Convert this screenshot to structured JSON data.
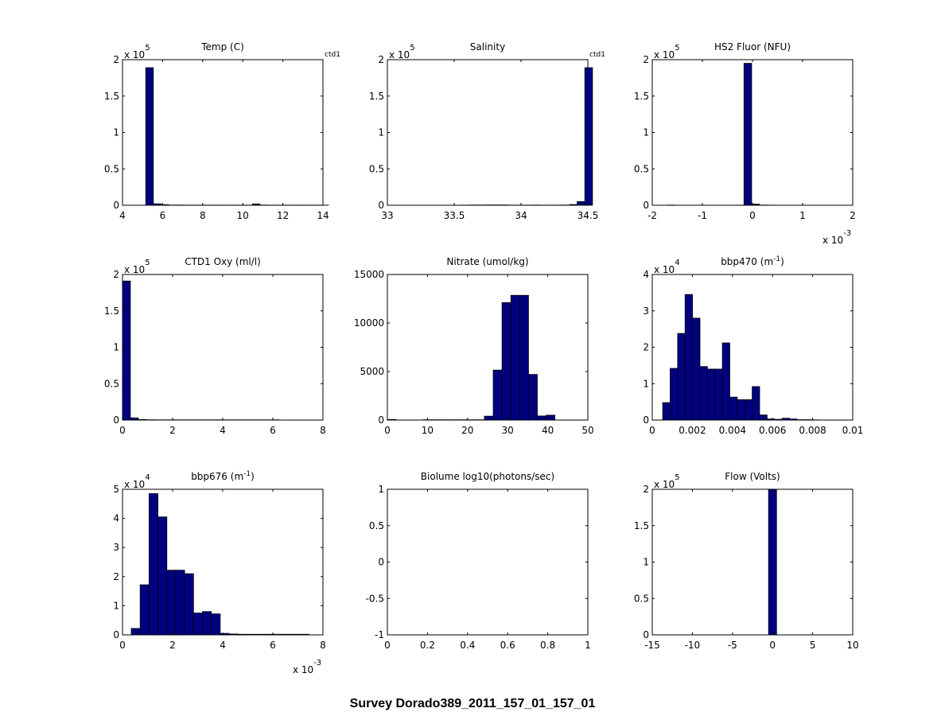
{
  "figure": {
    "suptitle": "Survey Dorado389_2011_157_01_157_01",
    "bar_color": "#000080",
    "edge_color": "#000000"
  },
  "chart_data": [
    {
      "type": "bar",
      "title": "Temp (C)",
      "corner_label": "ctd1",
      "xlim": [
        4,
        14
      ],
      "ylim": [
        0,
        2
      ],
      "xticks": [
        4,
        6,
        8,
        10,
        12,
        14
      ],
      "yticks": [
        0,
        0.5,
        1,
        1.5,
        2
      ],
      "x_exponent": "",
      "y_exponent": "5",
      "bins": {
        "start": 5.16,
        "width": 0.38,
        "values": [
          1.89,
          0.02,
          0.008,
          0.003,
          0.003,
          0.002,
          0.002,
          0.002,
          0.002,
          0.002,
          0.002,
          0.002,
          0.002,
          0.002,
          0.018,
          0.003,
          0.002,
          0.002,
          0.002,
          0.002,
          0.002,
          0.002,
          0.002,
          0.002
        ]
      }
    },
    {
      "type": "bar",
      "title": "Salinity",
      "corner_label": "ctd1",
      "xlim": [
        33,
        34.5
      ],
      "ylim": [
        0,
        2
      ],
      "xticks": [
        33,
        33.5,
        34,
        34.5
      ],
      "yticks": [
        0,
        0.5,
        1,
        1.5,
        2
      ],
      "x_exponent": "",
      "y_exponent": "5",
      "bins": {
        "start": 33.27,
        "width": 0.0575,
        "values": [
          0.0,
          0.0,
          0.0,
          0.0,
          0.0,
          0.002,
          0.003,
          0.003,
          0.004,
          0.004,
          0.004,
          0.002,
          0.002,
          0.002,
          0.003,
          0.002,
          0.002,
          0.002,
          0.003,
          0.01,
          0.05,
          1.89
        ]
      }
    },
    {
      "type": "bar",
      "title": "HS2 Fluor (NFU)",
      "corner_label": "",
      "xlim": [
        -2,
        2
      ],
      "ylim": [
        0,
        2
      ],
      "xticks": [
        -2,
        -1,
        0,
        1,
        2
      ],
      "yticks": [
        0,
        0.5,
        1,
        1.5,
        2
      ],
      "x_exponent": "-3",
      "y_exponent": "5",
      "bins": {
        "start": -1.7,
        "width": 0.153,
        "values": [
          0.003,
          0.0,
          0.0,
          0.001,
          0.001,
          0.001,
          0.001,
          0.001,
          0.001,
          0.002,
          1.95,
          0.015,
          0.003,
          0.002,
          0.001,
          0.001,
          0.001,
          0.001,
          0.001,
          0.001
        ]
      }
    },
    {
      "type": "bar",
      "title": "CTD1 Oxy (ml/l)",
      "corner_label": "",
      "xlim": [
        0,
        8
      ],
      "ylim": [
        0,
        2
      ],
      "xticks": [
        0,
        2,
        4,
        6,
        8
      ],
      "yticks": [
        0,
        0.5,
        1,
        1.5,
        2
      ],
      "x_exponent": "",
      "y_exponent": "5",
      "bins": {
        "start": 0,
        "width": 0.315,
        "values": [
          1.91,
          0.03,
          0.008,
          0.004,
          0.003,
          0.003,
          0.003,
          0.003,
          0.003,
          0.003,
          0.003,
          0.003,
          0.003,
          0.003,
          0.003,
          0.003,
          0.003,
          0.003,
          0.003,
          0.003
        ]
      }
    },
    {
      "type": "bar",
      "title": "Nitrate (umol/kg)",
      "corner_label": "",
      "xlim": [
        0,
        50
      ],
      "ylim": [
        0,
        15000
      ],
      "xticks": [
        0,
        10,
        20,
        30,
        40,
        50
      ],
      "yticks": [
        0,
        5000,
        10000,
        15000
      ],
      "x_exponent": "",
      "y_exponent": "",
      "bins": {
        "start": 0,
        "width": 2.2,
        "values": [
          60,
          0,
          0,
          0,
          30,
          30,
          30,
          30,
          30,
          30,
          30,
          400,
          5150,
          12100,
          12850,
          12850,
          4700,
          420,
          500
        ]
      }
    },
    {
      "type": "bar",
      "title": "bbp470 (m",
      "title_sup": "-1",
      "title_end": ")",
      "corner_label": "",
      "xlim": [
        0,
        0.01
      ],
      "ylim": [
        0,
        4
      ],
      "xticks": [
        0,
        0.002,
        0.004,
        0.006,
        0.008,
        0.01
      ],
      "yticks": [
        0,
        1,
        2,
        3,
        4
      ],
      "x_exponent": "",
      "y_exponent": "4",
      "bins": {
        "start": 0.00052,
        "width": 0.000372,
        "values": [
          0.48,
          1.42,
          2.38,
          3.45,
          2.8,
          1.47,
          1.4,
          1.4,
          2.12,
          0.63,
          0.56,
          0.56,
          0.92,
          0.14,
          0.03,
          0.02,
          0.05,
          0.03,
          0.01,
          0.01,
          0.005
        ]
      }
    },
    {
      "type": "bar",
      "title": "bbp676 (m",
      "title_sup": "-1",
      "title_end": ")",
      "corner_label": "",
      "xlim": [
        0,
        8
      ],
      "ylim": [
        0,
        5
      ],
      "xticks": [
        0,
        2,
        4,
        6,
        8
      ],
      "yticks": [
        0,
        1,
        2,
        3,
        4,
        5
      ],
      "x_exponent": "-3",
      "y_exponent": "4",
      "bins": {
        "start": 0.35,
        "width": 0.355,
        "values": [
          0.22,
          1.72,
          4.85,
          4.05,
          2.22,
          2.22,
          2.1,
          0.75,
          0.8,
          0.72,
          0.05,
          0.03,
          0.02,
          0.02,
          0.02,
          0.02,
          0.02,
          0.02,
          0.02,
          0.02
        ]
      }
    },
    {
      "type": "bar",
      "title": "Biolume log10(photons/sec)",
      "corner_label": "",
      "xlim": [
        0,
        1
      ],
      "ylim": [
        -1,
        1
      ],
      "xticks": [
        0,
        0.2,
        0.4,
        0.6,
        0.8,
        1
      ],
      "yticks": [
        -1,
        -0.5,
        0,
        0.5,
        1
      ],
      "x_exponent": "",
      "y_exponent": "",
      "bins": {
        "start": 0,
        "width": 0.1,
        "values": []
      }
    },
    {
      "type": "bar",
      "title": "Flow (Volts)",
      "corner_label": "",
      "xlim": [
        -15,
        10
      ],
      "ylim": [
        0,
        2
      ],
      "xticks": [
        -15,
        -10,
        -5,
        0,
        5,
        10
      ],
      "yticks": [
        0,
        0.5,
        1,
        1.5,
        2
      ],
      "x_exponent": "",
      "y_exponent": "5",
      "bins": {
        "start": -0.5,
        "width": 1.0,
        "values": [
          2.0
        ]
      }
    }
  ]
}
